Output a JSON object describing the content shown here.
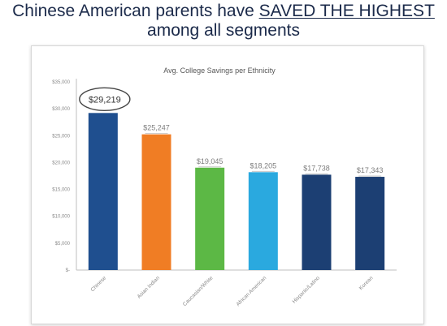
{
  "headline": {
    "part1": "Chinese American parents have ",
    "emphasis": "SAVED THE HIGHEST",
    "line2": "among all segments"
  },
  "chart_data": {
    "type": "bar",
    "title": "Avg. College Savings per Ethnicity",
    "categories": [
      "Chinese",
      "Asian Indian",
      "Caucasian/White",
      "African American",
      "Hispanic/Latino",
      "Korean"
    ],
    "values": [
      29219,
      25247,
      19045,
      18205,
      17738,
      17343
    ],
    "data_labels": [
      "$29,219",
      "$25,247",
      "$19,045",
      "$18,205",
      "$17,738",
      "$17,343"
    ],
    "colors": [
      "#1f4f8f",
      "#f07d24",
      "#5cb845",
      "#2aa9df",
      "#1c3f73",
      "#1c3f73"
    ],
    "ylim": [
      0,
      35000
    ],
    "ytick_values": [
      0,
      5000,
      10000,
      15000,
      20000,
      25000,
      30000,
      35000
    ],
    "ytick_labels": [
      "$-",
      "$5,000",
      "$10,000",
      "$15,000",
      "$20,000",
      "$25,000",
      "$30,000",
      "$35,000"
    ],
    "highlight_index": 0,
    "xlabel": "",
    "ylabel": "",
    "grid": false,
    "legend": "none"
  }
}
